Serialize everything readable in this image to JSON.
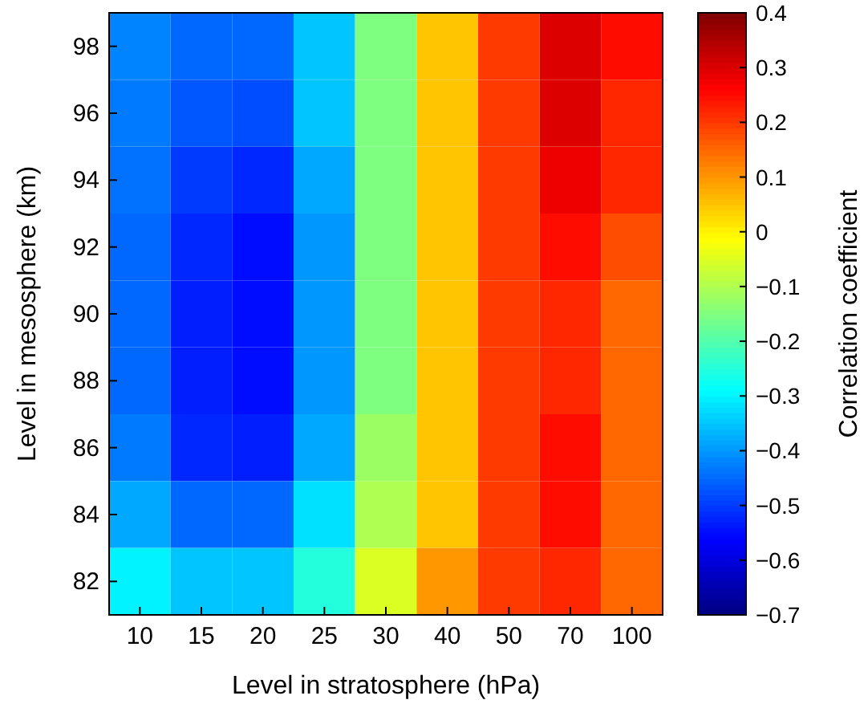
{
  "chart_data": {
    "type": "heatmap",
    "xlabel": "Level in stratosphere (hPa)",
    "ylabel": "Level in mesosphere (km)",
    "clabel": "Correlation coefficient",
    "categories": [
      "10",
      "15",
      "20",
      "25",
      "30",
      "40",
      "50",
      "70",
      "100"
    ],
    "y_categories": [
      "98",
      "96",
      "94",
      "92",
      "90",
      "88",
      "86",
      "84",
      "82"
    ],
    "cells": [
      [
        -0.42,
        -0.45,
        -0.45,
        -0.35,
        -0.15,
        0.05,
        0.2,
        0.3,
        0.25
      ],
      [
        -0.43,
        -0.47,
        -0.48,
        -0.35,
        -0.15,
        0.05,
        0.2,
        0.3,
        0.22
      ],
      [
        -0.44,
        -0.5,
        -0.52,
        -0.38,
        -0.15,
        0.05,
        0.2,
        0.28,
        0.22
      ],
      [
        -0.45,
        -0.52,
        -0.55,
        -0.4,
        -0.15,
        0.05,
        0.2,
        0.25,
        0.18
      ],
      [
        -0.45,
        -0.53,
        -0.55,
        -0.4,
        -0.15,
        0.05,
        0.2,
        0.22,
        0.15
      ],
      [
        -0.45,
        -0.53,
        -0.55,
        -0.4,
        -0.15,
        0.05,
        0.2,
        0.22,
        0.15
      ],
      [
        -0.43,
        -0.52,
        -0.53,
        -0.38,
        -0.12,
        0.05,
        0.2,
        0.25,
        0.15
      ],
      [
        -0.38,
        -0.45,
        -0.45,
        -0.32,
        -0.1,
        0.05,
        0.2,
        0.25,
        0.15
      ],
      [
        -0.3,
        -0.35,
        -0.35,
        -0.25,
        -0.05,
        0.1,
        0.2,
        0.22,
        0.15
      ]
    ],
    "clim": [
      -0.7,
      0.4
    ],
    "cticks": [
      -0.7,
      -0.6,
      -0.5,
      -0.4,
      -0.3,
      -0.2,
      -0.1,
      0,
      0.1,
      0.2,
      0.3,
      0.4
    ]
  }
}
